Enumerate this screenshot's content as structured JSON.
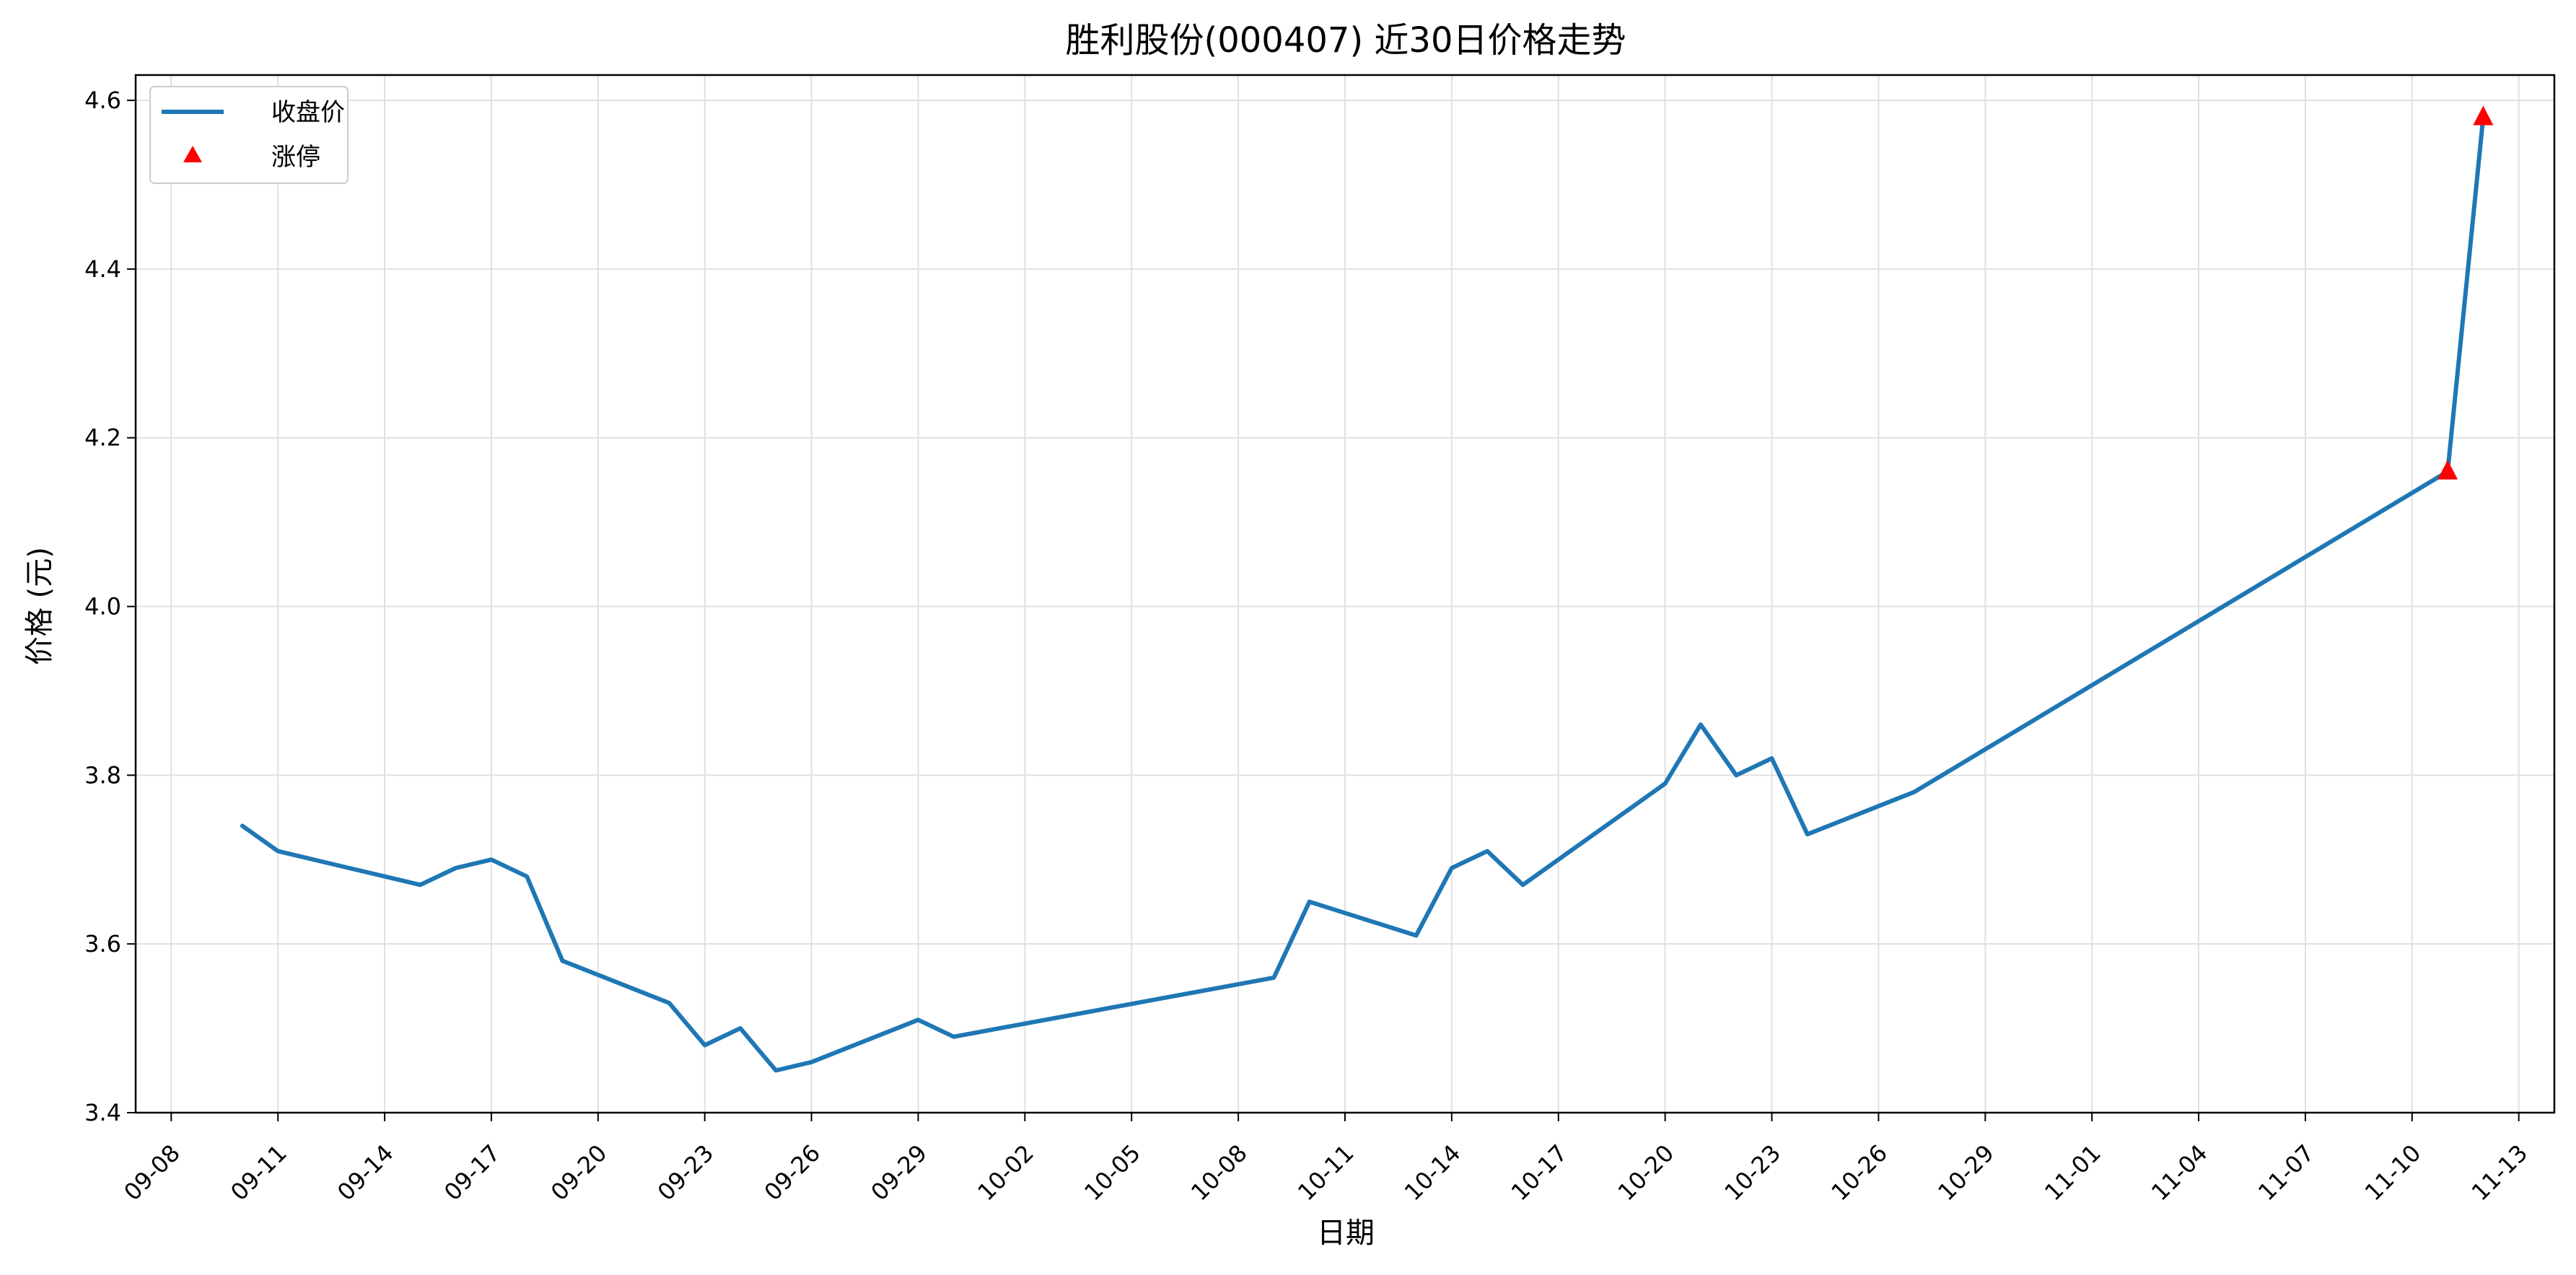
{
  "chart_data": {
    "type": "line",
    "title": "胜利股份(000407) 近30日价格走势",
    "xlabel": "日期",
    "ylabel": "价格 (元)",
    "ylim": [
      3.4,
      4.63
    ],
    "yticks": [
      "3.4",
      "3.6",
      "3.8",
      "4.0",
      "4.2",
      "4.4",
      "4.6"
    ],
    "x_range": [
      "2024-09-07",
      "2024-11-14"
    ],
    "xticks": [
      "09-08",
      "09-11",
      "09-14",
      "09-17",
      "09-20",
      "09-23",
      "09-26",
      "09-29",
      "10-02",
      "10-05",
      "10-08",
      "10-11",
      "10-14",
      "10-17",
      "10-20",
      "10-23",
      "10-26",
      "10-29",
      "11-01",
      "11-04",
      "11-07",
      "11-10",
      "11-13"
    ],
    "grid": true,
    "legend_position": "top-left",
    "colors": {
      "line": "#1f77b4",
      "marker": "#ff0000",
      "grid": "#e0e0e0"
    },
    "series": [
      {
        "name": "收盘价",
        "kind": "line",
        "points": [
          {
            "date": "2024-09-10",
            "value": 3.74
          },
          {
            "date": "2024-09-11",
            "value": 3.71
          },
          {
            "date": "2024-09-13",
            "value": 3.69
          },
          {
            "date": "2024-09-15",
            "value": 3.67
          },
          {
            "date": "2024-09-16",
            "value": 3.69
          },
          {
            "date": "2024-09-17",
            "value": 3.7
          },
          {
            "date": "2024-09-18",
            "value": 3.68
          },
          {
            "date": "2024-09-19",
            "value": 3.58
          },
          {
            "date": "2024-09-22",
            "value": 3.53
          },
          {
            "date": "2024-09-23",
            "value": 3.48
          },
          {
            "date": "2024-09-24",
            "value": 3.5
          },
          {
            "date": "2024-09-25",
            "value": 3.45
          },
          {
            "date": "2024-09-26",
            "value": 3.46
          },
          {
            "date": "2024-09-29",
            "value": 3.51
          },
          {
            "date": "2024-09-30",
            "value": 3.49
          },
          {
            "date": "2024-10-09",
            "value": 3.56
          },
          {
            "date": "2024-10-10",
            "value": 3.65
          },
          {
            "date": "2024-10-13",
            "value": 3.61
          },
          {
            "date": "2024-10-14",
            "value": 3.69
          },
          {
            "date": "2024-10-15",
            "value": 3.71
          },
          {
            "date": "2024-10-16",
            "value": 3.67
          },
          {
            "date": "2024-10-20",
            "value": 3.79
          },
          {
            "date": "2024-10-21",
            "value": 3.86
          },
          {
            "date": "2024-10-22",
            "value": 3.8
          },
          {
            "date": "2024-10-23",
            "value": 3.82
          },
          {
            "date": "2024-10-24",
            "value": 3.73
          },
          {
            "date": "2024-10-27",
            "value": 3.78
          },
          {
            "date": "2024-11-11",
            "value": 4.16
          },
          {
            "date": "2024-11-12",
            "value": 4.58
          }
        ]
      },
      {
        "name": "涨停",
        "kind": "marker",
        "marker": "triangle",
        "points": [
          {
            "date": "2024-11-11",
            "value": 4.16
          },
          {
            "date": "2024-11-12",
            "value": 4.58
          }
        ]
      }
    ]
  }
}
